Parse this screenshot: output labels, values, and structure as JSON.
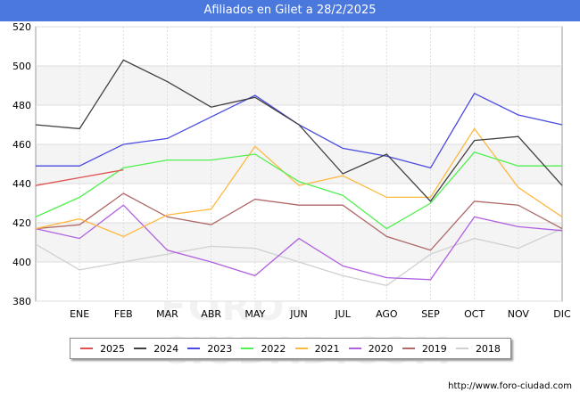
{
  "chart_data": {
    "type": "line",
    "title": "Afiliados en Gilet a 28/2/2025",
    "categories": [
      "",
      "ENE",
      "FEB",
      "MAR",
      "ABR",
      "MAY",
      "JUN",
      "JUL",
      "AGO",
      "SEP",
      "OCT",
      "NOV",
      "DIC"
    ],
    "ylim": [
      380,
      520
    ],
    "yticks": [
      380,
      400,
      420,
      440,
      460,
      480,
      500,
      520
    ],
    "grid": true,
    "legend_position": "bottom",
    "series": [
      {
        "name": "2025",
        "color": "#e05050",
        "values": [
          439,
          443,
          447,
          null,
          null,
          null,
          null,
          null,
          null,
          null,
          null,
          null,
          null
        ]
      },
      {
        "name": "2024",
        "color": "#404040",
        "values": [
          470,
          468,
          503,
          492,
          479,
          484,
          470,
          445,
          455,
          431,
          462,
          464,
          439
        ]
      },
      {
        "name": "2023",
        "color": "#4a4ae0",
        "values": [
          449,
          449,
          460,
          463,
          474,
          485,
          470,
          458,
          454,
          448,
          486,
          475,
          470
        ]
      },
      {
        "name": "2022",
        "color": "#50f050",
        "values": [
          423,
          433,
          448,
          452,
          452,
          455,
          441,
          434,
          417,
          430,
          456,
          449,
          449
        ]
      },
      {
        "name": "2021",
        "color": "#ffb840",
        "values": [
          417,
          422,
          413,
          424,
          427,
          459,
          439,
          444,
          433,
          433,
          468,
          438,
          423
        ]
      },
      {
        "name": "2020",
        "color": "#b060e0",
        "values": [
          417,
          412,
          429,
          406,
          400,
          393,
          412,
          398,
          392,
          391,
          423,
          418,
          416
        ]
      },
      {
        "name": "2019",
        "color": "#b06868",
        "values": [
          417,
          419,
          435,
          423,
          419,
          432,
          429,
          429,
          413,
          406,
          431,
          429,
          417
        ]
      },
      {
        "name": "2018",
        "color": "#d0d0d0",
        "values": [
          409,
          396,
          400,
          404,
          408,
          407,
          400,
          393,
          388,
          404,
          412,
          407,
          417
        ]
      }
    ]
  },
  "watermark": "FORO-CIUDAD.COM",
  "footer": {
    "url": "http://www.foro-ciudad.com"
  }
}
